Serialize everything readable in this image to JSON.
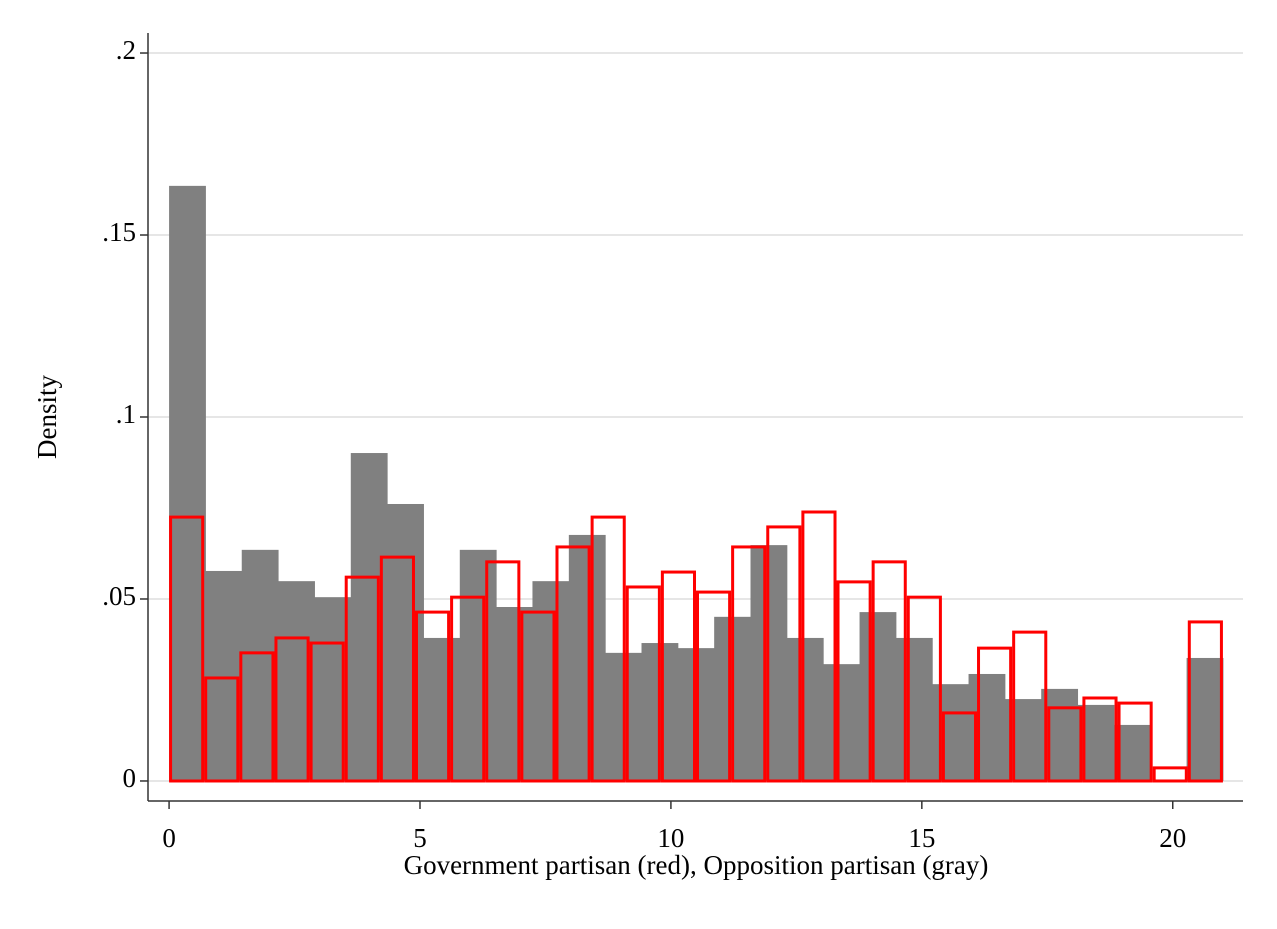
{
  "chart_data": {
    "type": "histogram",
    "xlabel": "Government partisan (red), Opposition partisan (gray)",
    "ylabel": "Density",
    "xlim": [
      -0.42,
      21.4
    ],
    "ylim": [
      -0.0055,
      0.2055
    ],
    "xticks": [
      0,
      5,
      10,
      15,
      20
    ],
    "yticks": [
      0,
      {
        "value": 0.05,
        "label": ".05"
      },
      {
        "value": 0.1,
        "label": ".1"
      },
      {
        "value": 0.15,
        "label": ".15"
      },
      {
        "value": 0.2,
        "label": ".2"
      }
    ],
    "grid": true,
    "series": [
      {
        "color": "#808080",
        "style": "fill",
        "bins": [
          0,
          0.724,
          1.448,
          2.172,
          2.897,
          3.621,
          4.345,
          5.069,
          5.793,
          6.517,
          7.241,
          7.966,
          8.69,
          9.414,
          10.138,
          10.862,
          11.586,
          12.31,
          13.034,
          13.759,
          14.483,
          15.207,
          15.931,
          16.655,
          17.379,
          18.103,
          18.828,
          19.552,
          20.276,
          21
        ],
        "values": [
          0.1635,
          0.0577,
          0.0635,
          0.0549,
          0.0505,
          0.0901,
          0.0761,
          0.0393,
          0.0635,
          0.0478,
          0.0549,
          0.0676,
          0.0352,
          0.0379,
          0.0365,
          0.0451,
          0.0648,
          0.0393,
          0.0321,
          0.0464,
          0.0393,
          0.0266,
          0.0294,
          0.0225,
          0.0253,
          0.0209,
          0.0154,
          0,
          0.0338
        ]
      },
      {
        "color": "#ff0000",
        "style": "outline",
        "bins": [
          0,
          0.7,
          1.4,
          2.1,
          2.8,
          3.5,
          4.2,
          4.9,
          5.6,
          6.3,
          7,
          7.7,
          8.4,
          9.1,
          9.8,
          10.5,
          11.2,
          11.9,
          12.6,
          13.3,
          14,
          14.7,
          15.4,
          16.1,
          16.8,
          17.5,
          18.2,
          18.9,
          19.6,
          20.3,
          21
        ],
        "values": [
          0.0725,
          0.0283,
          0.0352,
          0.0393,
          0.0379,
          0.056,
          0.0615,
          0.0464,
          0.0505,
          0.0602,
          0.0464,
          0.0643,
          0.0725,
          0.0533,
          0.0574,
          0.0519,
          0.0643,
          0.0698,
          0.0739,
          0.0547,
          0.0602,
          0.0505,
          0.0187,
          0.0365,
          0.0409,
          0.0201,
          0.0228,
          0.0214,
          0.0036,
          0.0437
        ]
      }
    ]
  }
}
